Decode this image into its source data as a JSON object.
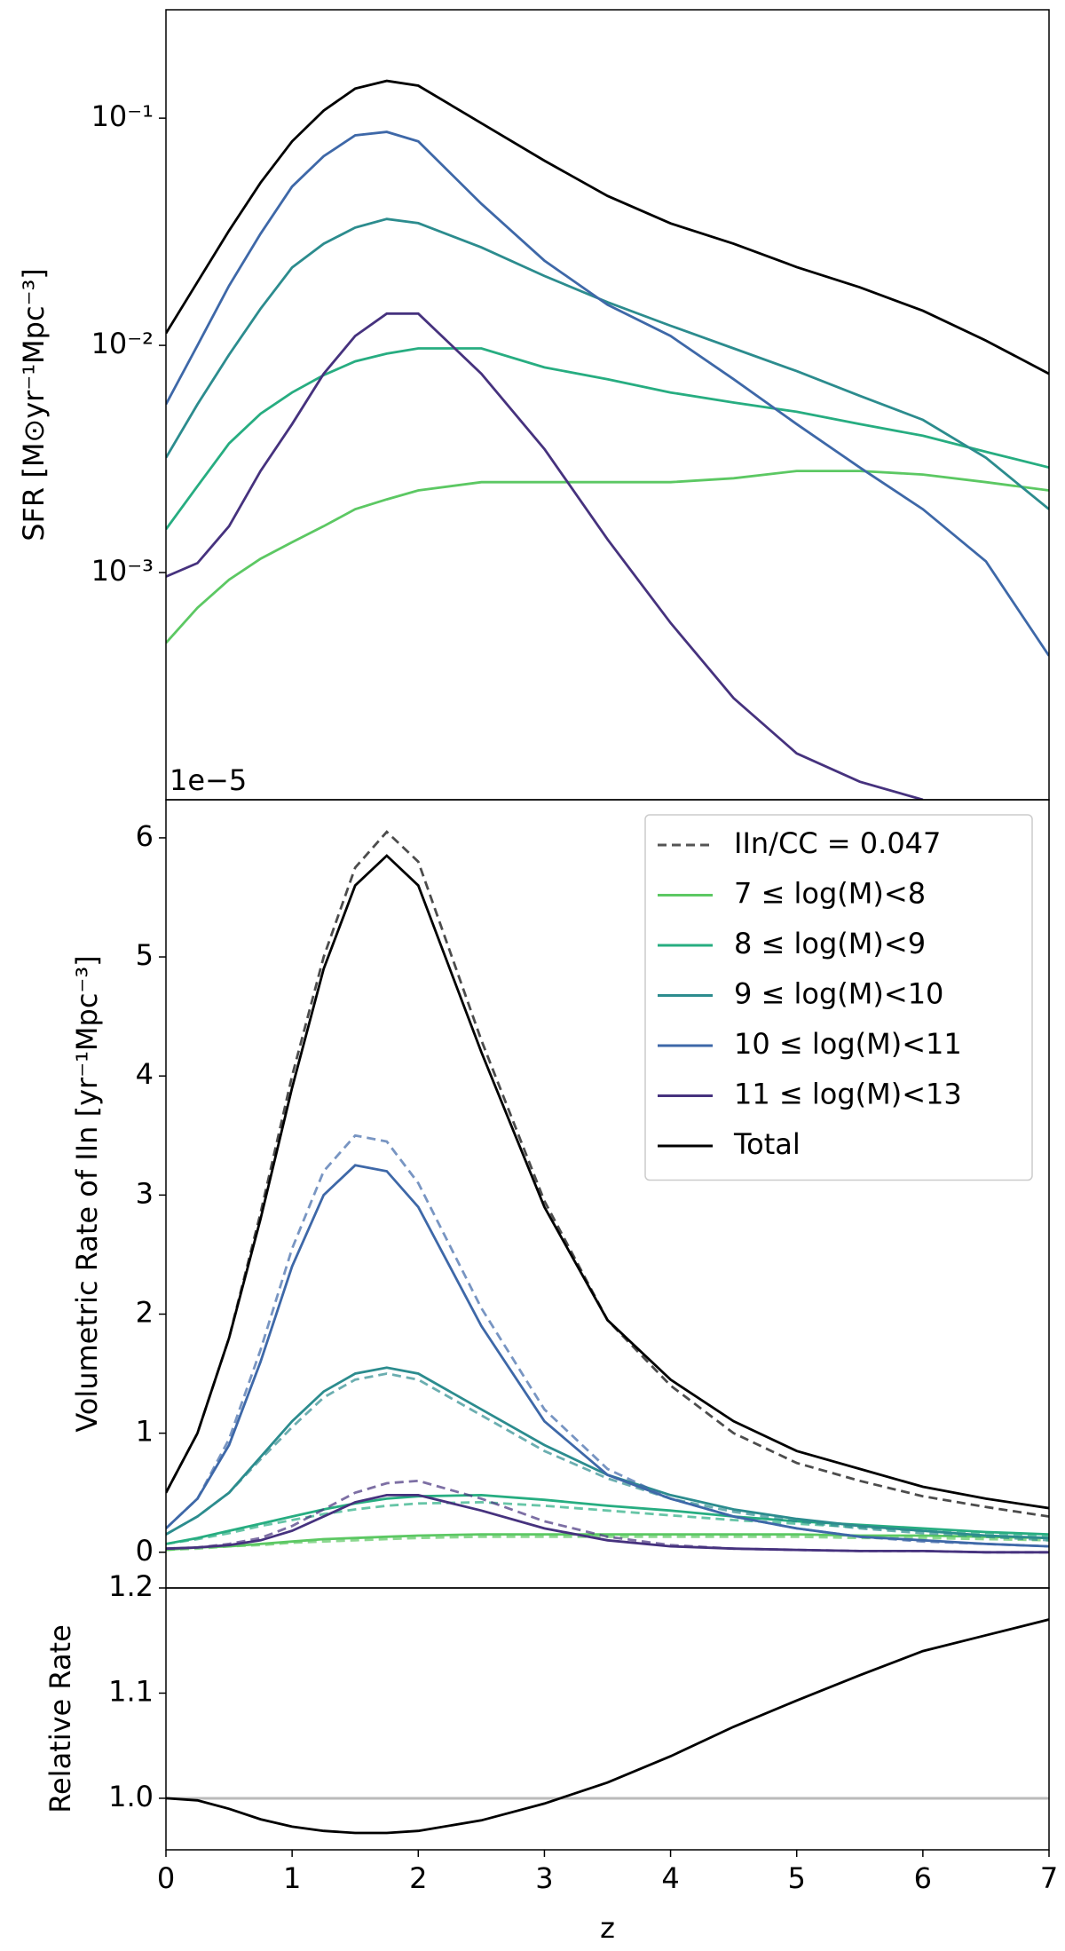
{
  "chart_data": [
    {
      "type": "line",
      "ylabel": "SFR [M⊙yr⁻¹Mpc⁻³]",
      "log_y": true,
      "x": [
        0,
        0.25,
        0.5,
        0.75,
        1,
        1.25,
        1.5,
        1.75,
        2,
        2.5,
        3,
        3.5,
        4,
        4.5,
        5,
        5.5,
        6,
        6.5,
        7
      ],
      "xlim": [
        0,
        7
      ],
      "ylim": [
        0.0001,
        0.3
      ],
      "yticks": [
        {
          "value": 0.001,
          "label": "10⁻³"
        },
        {
          "value": 0.01,
          "label": "10⁻²"
        },
        {
          "value": 0.1,
          "label": "10⁻¹"
        }
      ],
      "series": [
        {
          "color": "#5cc863",
          "values": [
            0.00049,
            0.0007,
            0.00093,
            0.00115,
            0.00136,
            0.0016,
            0.0019,
            0.0021,
            0.0023,
            0.0025,
            0.0025,
            0.0025,
            0.0025,
            0.0026,
            0.0028,
            0.0028,
            0.0027,
            0.0025,
            0.0023
          ]
        },
        {
          "color": "#27ad81",
          "values": [
            0.00155,
            0.0024,
            0.0037,
            0.005,
            0.0062,
            0.0074,
            0.0085,
            0.0092,
            0.0097,
            0.0097,
            0.008,
            0.0071,
            0.0062,
            0.0056,
            0.0051,
            0.0045,
            0.004,
            0.0034,
            0.0029
          ]
        },
        {
          "color": "#2c8c8e",
          "values": [
            0.0032,
            0.0055,
            0.0091,
            0.0145,
            0.022,
            0.028,
            0.033,
            0.036,
            0.0345,
            0.027,
            0.0202,
            0.0155,
            0.0122,
            0.0097,
            0.0077,
            0.006,
            0.0047,
            0.0032,
            0.0019
          ]
        },
        {
          "color": "#3e68a8",
          "values": [
            0.0055,
            0.01,
            0.0183,
            0.031,
            0.05,
            0.068,
            0.084,
            0.087,
            0.079,
            0.042,
            0.0236,
            0.0151,
            0.011,
            0.0071,
            0.0045,
            0.0029,
            0.0019,
            0.00112,
            0.00043
          ]
        },
        {
          "color": "#46327e",
          "values": [
            0.00096,
            0.0011,
            0.0016,
            0.0028,
            0.0045,
            0.0075,
            0.011,
            0.0138,
            0.0138,
            0.0075,
            0.0035,
            0.0014,
            0.0006,
            0.00028,
            0.00016,
            0.00012,
            0.0001,
            null,
            null
          ]
        },
        {
          "color": "#000000",
          "values": [
            0.0113,
            0.019,
            0.032,
            0.052,
            0.079,
            0.108,
            0.135,
            0.146,
            0.139,
            0.095,
            0.065,
            0.0455,
            0.0344,
            0.028,
            0.0221,
            0.018,
            0.0142,
            0.0105,
            0.0075
          ]
        }
      ]
    },
    {
      "type": "line",
      "ylabel": "Volumetric Rate of IIn [yr⁻¹Mpc⁻³]",
      "offset_label": "1e−5",
      "x": [
        0,
        0.25,
        0.5,
        0.75,
        1,
        1.25,
        1.5,
        1.75,
        2,
        2.5,
        3,
        3.5,
        4,
        4.5,
        5,
        5.5,
        6,
        6.5,
        7
      ],
      "xlim": [
        0,
        7
      ],
      "ylim": [
        -0.3,
        6.32
      ],
      "yticks": [
        0,
        1,
        2,
        3,
        4,
        5,
        6
      ],
      "legend_position": "upper right",
      "model_legend": {
        "name": "IIn/CC = 0.047",
        "color": "#555555"
      },
      "series": [
        {
          "name": "7 ≤ log(M)<8",
          "color": "#5cc863",
          "values": [
            0.02,
            0.04,
            0.05,
            0.07,
            0.09,
            0.11,
            0.12,
            0.13,
            0.14,
            0.15,
            0.15,
            0.15,
            0.15,
            0.15,
            0.15,
            0.14,
            0.14,
            0.13,
            0.12
          ],
          "model_values": [
            0.02,
            0.03,
            0.05,
            0.06,
            0.08,
            0.09,
            0.1,
            0.11,
            0.12,
            0.13,
            0.13,
            0.13,
            0.13,
            0.13,
            0.13,
            0.12,
            0.12,
            0.11,
            0.1
          ]
        },
        {
          "name": "8 ≤ log(M)<9",
          "color": "#27ad81",
          "values": [
            0.07,
            0.12,
            0.18,
            0.24,
            0.3,
            0.36,
            0.41,
            0.45,
            0.47,
            0.48,
            0.44,
            0.39,
            0.35,
            0.3,
            0.26,
            0.23,
            0.2,
            0.17,
            0.15
          ],
          "model_values": [
            0.07,
            0.11,
            0.16,
            0.22,
            0.27,
            0.32,
            0.36,
            0.39,
            0.41,
            0.42,
            0.39,
            0.35,
            0.31,
            0.27,
            0.24,
            0.21,
            0.18,
            0.16,
            0.14
          ]
        },
        {
          "name": "9 ≤ log(M)<10",
          "color": "#2c8c8e",
          "values": [
            0.15,
            0.3,
            0.5,
            0.8,
            1.1,
            1.35,
            1.5,
            1.55,
            1.5,
            1.2,
            0.9,
            0.65,
            0.48,
            0.36,
            0.28,
            0.22,
            0.18,
            0.14,
            0.12
          ],
          "model_values": [
            0.15,
            0.3,
            0.5,
            0.78,
            1.05,
            1.3,
            1.45,
            1.5,
            1.45,
            1.15,
            0.85,
            0.62,
            0.45,
            0.34,
            0.26,
            0.2,
            0.16,
            0.13,
            0.1
          ]
        },
        {
          "name": "10 ≤ log(M)<11",
          "color": "#3e68a8",
          "values": [
            0.2,
            0.45,
            0.9,
            1.6,
            2.4,
            3.0,
            3.25,
            3.2,
            2.9,
            1.9,
            1.1,
            0.65,
            0.45,
            0.3,
            0.2,
            0.13,
            0.1,
            0.07,
            0.05
          ],
          "model_values": [
            0.2,
            0.45,
            0.95,
            1.7,
            2.55,
            3.2,
            3.5,
            3.45,
            3.1,
            2.05,
            1.2,
            0.7,
            0.45,
            0.3,
            0.2,
            0.13,
            0.09,
            0.07,
            0.05
          ]
        },
        {
          "name": "11 ≤ log(M)<13",
          "color": "#46327e",
          "values": [
            0.03,
            0.04,
            0.06,
            0.1,
            0.18,
            0.3,
            0.42,
            0.48,
            0.48,
            0.35,
            0.2,
            0.1,
            0.05,
            0.03,
            0.02,
            0.01,
            0.01,
            0,
            0
          ],
          "model_values": [
            0.03,
            0.04,
            0.07,
            0.12,
            0.22,
            0.36,
            0.5,
            0.58,
            0.6,
            0.45,
            0.26,
            0.13,
            0.06,
            0.03,
            0.02,
            0.01,
            0.01,
            0,
            0
          ]
        },
        {
          "name": "Total",
          "color": "#000000",
          "values": [
            0.5,
            1.0,
            1.8,
            2.8,
            3.9,
            4.9,
            5.6,
            5.85,
            5.6,
            4.2,
            2.9,
            1.95,
            1.45,
            1.1,
            0.85,
            0.7,
            0.55,
            0.45,
            0.37
          ],
          "model_values": [
            0.5,
            1.0,
            1.8,
            2.85,
            4.0,
            5.0,
            5.75,
            6.05,
            5.8,
            4.3,
            2.95,
            1.95,
            1.4,
            1.0,
            0.75,
            0.6,
            0.47,
            0.38,
            0.3
          ]
        }
      ]
    },
    {
      "type": "line",
      "ylabel": "Relative Rate",
      "xlabel": "z",
      "x": [
        0,
        0.25,
        0.5,
        0.75,
        1,
        1.25,
        1.5,
        1.75,
        2,
        2.5,
        3,
        3.5,
        4,
        4.5,
        5,
        5.5,
        6,
        6.5,
        7
      ],
      "xlim": [
        0,
        7
      ],
      "xticks": [
        0,
        1,
        2,
        3,
        4,
        5,
        6,
        7
      ],
      "ylim": [
        0.951,
        1.2
      ],
      "yticks": [
        {
          "value": 1.0,
          "label": "1.0"
        },
        1.1,
        1.2
      ],
      "reference_line": {
        "value": 1.0,
        "color": "#bbbbbb"
      },
      "series": [
        {
          "color": "#000000",
          "values": [
            1.0,
            0.998,
            0.99,
            0.98,
            0.973,
            0.969,
            0.967,
            0.967,
            0.969,
            0.979,
            0.995,
            1.015,
            1.04,
            1.068,
            1.093,
            1.117,
            1.14,
            1.155,
            1.17
          ]
        }
      ]
    }
  ]
}
